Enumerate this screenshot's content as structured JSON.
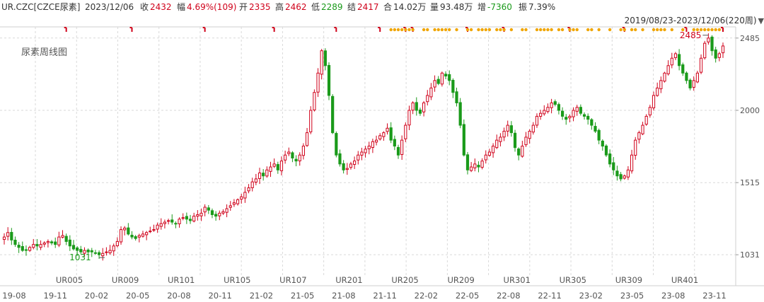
{
  "quote": {
    "symbol": "UR.CZC[CZCE尿素]",
    "date": "2023/12/06",
    "close_label": "收",
    "close": "2432",
    "change_label": "幅",
    "change": "4.69%(109)",
    "open_label": "开",
    "open": "2335",
    "high_label": "高",
    "high": "2462",
    "low_label": "低",
    "low": "2289",
    "settle_label": "结",
    "settle": "2417",
    "volume_label": "合",
    "volume": "14.02万",
    "amount_label": "量",
    "amount": "93.48万",
    "oi_change_label": "增",
    "oi_change": "-7360",
    "amplitude_label": "振",
    "amplitude": "7.39%"
  },
  "range_label": "2019/08/23-2023/12/06(220周)",
  "chart_title": "尿素周线图",
  "colors": {
    "up": "#d0021b",
    "down": "#1a9a1a",
    "grid": "#d9d9d9",
    "star": "#f0a500",
    "flag": "#d0021b"
  },
  "chart_data": {
    "type": "candlestick",
    "title": "尿素周线图",
    "period": "weekly",
    "ylim": [
      880,
      2560
    ],
    "y_ticks": [
      1031,
      1515,
      2000,
      2485
    ],
    "high_label": "2485",
    "low_label": "1031",
    "contract_labels": [
      "UR005",
      "UR009",
      "UR101",
      "UR105",
      "UR107",
      "UR201",
      "UR205",
      "UR209",
      "UR301",
      "UR305",
      "UR309",
      "UR401"
    ],
    "date_ticks": [
      "19-08",
      "19-11",
      "20-02",
      "20-05",
      "20-08",
      "20-11",
      "21-02",
      "21-05",
      "21-08",
      "21-11",
      "22-02",
      "22-05",
      "22-08",
      "22-11",
      "23-02",
      "23-05",
      "23-08",
      "23-11"
    ],
    "price_path": [
      1150,
      1180,
      1130,
      1100,
      1080,
      1060,
      1060,
      1080,
      1100,
      1090,
      1100,
      1110,
      1120,
      1110,
      1100,
      1150,
      1160,
      1120,
      1090,
      1070,
      1060,
      1050,
      1060,
      1050,
      1050,
      1040,
      1031,
      1040,
      1050,
      1060,
      1090,
      1120,
      1200,
      1210,
      1170,
      1150,
      1140,
      1160,
      1170,
      1180,
      1190,
      1200,
      1230,
      1240,
      1250,
      1260,
      1250,
      1240,
      1270,
      1280,
      1270,
      1260,
      1290,
      1300,
      1310,
      1350,
      1330,
      1300,
      1290,
      1310,
      1320,
      1340,
      1360,
      1380,
      1400,
      1420,
      1450,
      1480,
      1520,
      1540,
      1580,
      1560,
      1600,
      1620,
      1640,
      1600,
      1660,
      1700,
      1720,
      1680,
      1660,
      1700,
      1760,
      1850,
      2000,
      2120,
      2250,
      2400,
      2300,
      2100,
      1850,
      1700,
      1640,
      1600,
      1610,
      1640,
      1660,
      1700,
      1720,
      1740,
      1760,
      1790,
      1800,
      1830,
      1850,
      1880,
      1800,
      1760,
      1700,
      1800,
      1900,
      2000,
      2050,
      2000,
      1980,
      2050,
      2100,
      2150,
      2200,
      2180,
      2250,
      2230,
      2200,
      2120,
      2050,
      1900,
      1700,
      1600,
      1620,
      1640,
      1620,
      1660,
      1700,
      1720,
      1760,
      1800,
      1820,
      1860,
      1900,
      1850,
      1750,
      1700,
      1760,
      1820,
      1860,
      1900,
      1960,
      1980,
      2000,
      2020,
      2050,
      2040,
      2000,
      1960,
      1940,
      1960,
      2000,
      2020,
      1980,
      1960,
      1940,
      1900,
      1860,
      1800,
      1760,
      1700,
      1640,
      1600,
      1560,
      1540,
      1560,
      1600,
      1700,
      1800,
      1850,
      1900,
      1960,
      2020,
      2100,
      2150,
      2200,
      2250,
      2300,
      2350,
      2380,
      2300,
      2250,
      2200,
      2150,
      2200,
      2250,
      2350,
      2450,
      2485,
      2400,
      2350,
      2380,
      2432
    ],
    "signal_weeks": [
      17,
      35,
      55,
      74,
      91,
      103,
      110,
      112,
      127,
      137,
      155,
      170,
      187,
      202,
      216
    ]
  }
}
